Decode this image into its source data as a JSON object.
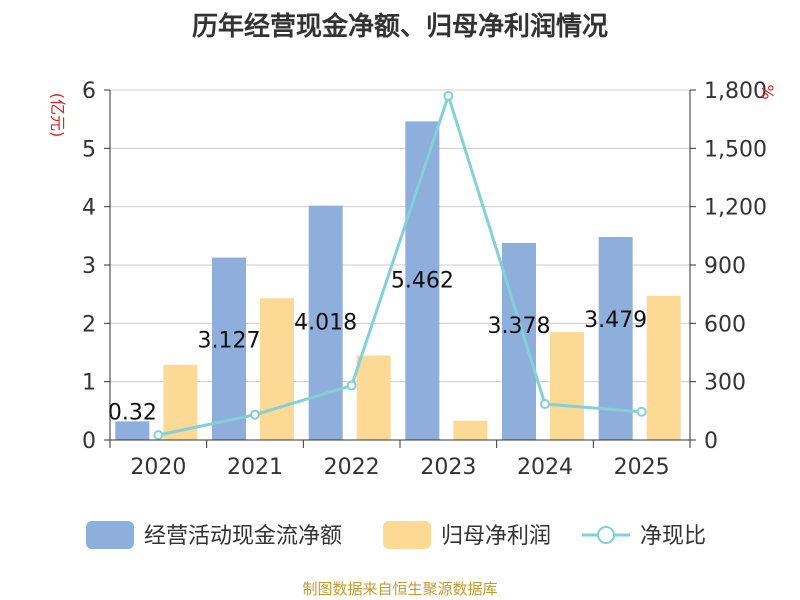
{
  "chart_data": {
    "type": "bar",
    "title": "历年经营现金净额、归母净利润情况",
    "categories": [
      "2020",
      "2021",
      "2022",
      "2023",
      "2024",
      "2025"
    ],
    "left_axis_unit": "(亿元)",
    "right_axis_unit": "%",
    "ylim_left": [
      0,
      6
    ],
    "yticks_left": [
      "0",
      "1",
      "2",
      "3",
      "4",
      "5",
      "6"
    ],
    "ylim_right": [
      0,
      1800
    ],
    "yticks_right": [
      "0",
      "300",
      "600",
      "900",
      "1,200",
      "1,500",
      "1,800"
    ],
    "series": [
      {
        "name": "经营活动现金流净额",
        "type": "bar",
        "axis": "left",
        "color": "#8eaedc",
        "values": [
          0.32,
          3.127,
          4.018,
          5.462,
          3.378,
          3.479
        ],
        "labels": [
          "0.32",
          "3.127",
          "4.018",
          "5.462",
          "3.378",
          "3.479"
        ]
      },
      {
        "name": "归母净利润",
        "type": "bar",
        "axis": "left",
        "color": "#fdd996",
        "values": [
          1.29,
          2.43,
          1.45,
          0.33,
          1.85,
          2.47
        ]
      },
      {
        "name": "净现比",
        "type": "line",
        "axis": "right",
        "color": "#82d0d8",
        "values": [
          25,
          130,
          280,
          1770,
          185,
          145
        ]
      }
    ],
    "legend_position": "bottom",
    "grid": true
  },
  "source_note": "制图数据来自恒生聚源数据库"
}
